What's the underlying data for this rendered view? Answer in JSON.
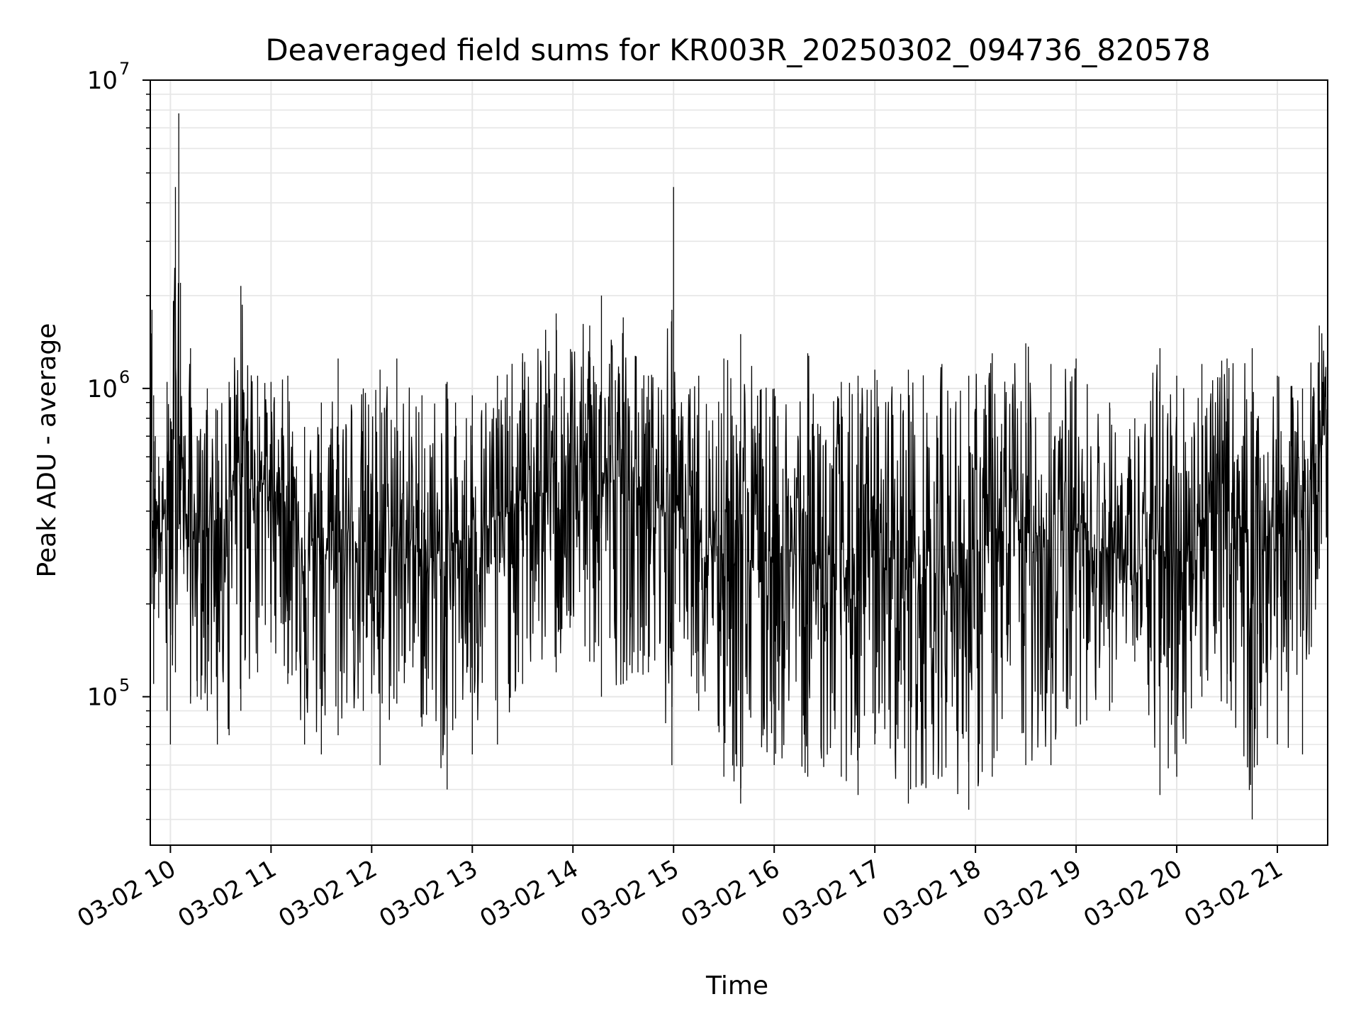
{
  "chart_data": {
    "type": "line",
    "title": "Deaveraged field sums for KR003R_20250302_094736_820578",
    "xlabel": "Time",
    "ylabel": "Peak ADU - average",
    "yscale": "log",
    "ylim": [
      33000,
      10000000
    ],
    "xlim": [
      "2025-03-02 09:48",
      "2025-03-02 21:30"
    ],
    "grid": true,
    "line_color": "#000000",
    "grid_color": "#e6e6e6",
    "x_ticks": [
      {
        "value": "2025-03-02 10:00",
        "label": "03-02 10"
      },
      {
        "value": "2025-03-02 11:00",
        "label": "03-02 11"
      },
      {
        "value": "2025-03-02 12:00",
        "label": "03-02 12"
      },
      {
        "value": "2025-03-02 13:00",
        "label": "03-02 13"
      },
      {
        "value": "2025-03-02 14:00",
        "label": "03-02 14"
      },
      {
        "value": "2025-03-02 15:00",
        "label": "03-02 15"
      },
      {
        "value": "2025-03-02 16:00",
        "label": "03-02 16"
      },
      {
        "value": "2025-03-02 17:00",
        "label": "03-02 17"
      },
      {
        "value": "2025-03-02 18:00",
        "label": "03-02 18"
      },
      {
        "value": "2025-03-02 19:00",
        "label": "03-02 19"
      },
      {
        "value": "2025-03-02 20:00",
        "label": "03-02 20"
      },
      {
        "value": "2025-03-02 21:00",
        "label": "03-02 21"
      }
    ],
    "y_ticks": [
      {
        "value": 100000,
        "base": "10",
        "exp": "5"
      },
      {
        "value": 1000000,
        "base": "10",
        "exp": "6"
      },
      {
        "value": 10000000,
        "base": "10",
        "exp": "7"
      }
    ],
    "series": [
      {
        "x": [
          "2025-03-02 09:48",
          "2025-03-02 09:49",
          "2025-03-02 09:50",
          "2025-03-02 09:51",
          "2025-03-02 09:53",
          "2025-03-02 09:55",
          "2025-03-02 09:58",
          "2025-03-02 10:00",
          "2025-03-02 10:03",
          "2025-03-02 10:05",
          "2025-03-02 10:06",
          "2025-03-02 10:08",
          "2025-03-02 10:12",
          "2025-03-02 10:16",
          "2025-03-02 10:22",
          "2025-03-02 10:28",
          "2025-03-02 10:35",
          "2025-03-02 10:42",
          "2025-03-02 10:52",
          "2025-03-02 11:00",
          "2025-03-02 11:10",
          "2025-03-02 11:20",
          "2025-03-02 11:30",
          "2025-03-02 11:40",
          "2025-03-02 11:55",
          "2025-03-02 12:05",
          "2025-03-02 12:15",
          "2025-03-02 12:30",
          "2025-03-02 12:45",
          "2025-03-02 12:50",
          "2025-03-02 13:00",
          "2025-03-02 13:15",
          "2025-03-02 13:30",
          "2025-03-02 13:50",
          "2025-03-02 14:10",
          "2025-03-02 14:17",
          "2025-03-02 14:30",
          "2025-03-02 14:45",
          "2025-03-02 14:59",
          "2025-03-02 15:00",
          "2025-03-02 15:01",
          "2025-03-02 15:15",
          "2025-03-02 15:30",
          "2025-03-02 15:40",
          "2025-03-02 16:00",
          "2025-03-02 16:20",
          "2025-03-02 16:40",
          "2025-03-02 16:50",
          "2025-03-02 17:00",
          "2025-03-02 17:20",
          "2025-03-02 17:40",
          "2025-03-02 17:56",
          "2025-03-02 18:10",
          "2025-03-02 18:30",
          "2025-03-02 18:45",
          "2025-03-02 19:00",
          "2025-03-02 19:20",
          "2025-03-02 19:35",
          "2025-03-02 19:50",
          "2025-03-02 20:00",
          "2025-03-02 20:15",
          "2025-03-02 20:30",
          "2025-03-02 20:45",
          "2025-03-02 20:48",
          "2025-03-02 21:00",
          "2025-03-02 21:15",
          "2025-03-02 21:25",
          "2025-03-02 21:30"
        ],
        "upper": [
          2100000,
          1800000,
          950000,
          700000,
          600000,
          500000,
          1050000,
          800000,
          4500000,
          7800000,
          2200000,
          700000,
          1350000,
          700000,
          1000000,
          850000,
          1050000,
          2150000,
          1100000,
          1050000,
          1100000,
          750000,
          900000,
          1250000,
          1000000,
          1150000,
          1250000,
          950000,
          1050000,
          900000,
          950000,
          1100000,
          1300000,
          1750000,
          1600000,
          2000000,
          1700000,
          1100000,
          1800000,
          4500000,
          900000,
          1100000,
          1250000,
          1500000,
          1000000,
          1300000,
          1050000,
          1100000,
          1150000,
          1150000,
          1200000,
          1100000,
          1300000,
          1400000,
          1200000,
          1250000,
          900000,
          800000,
          1350000,
          1100000,
          1200000,
          1250000,
          1350000,
          800000,
          1100000,
          1000000,
          1600000,
          1700000
        ],
        "lower": [
          900000,
          200000,
          110000,
          250000,
          180000,
          250000,
          90000,
          70000,
          120000,
          350000,
          300000,
          250000,
          95000,
          100000,
          90000,
          70000,
          75000,
          90000,
          120000,
          150000,
          110000,
          70000,
          65000,
          75000,
          90000,
          60000,
          95000,
          80000,
          50000,
          85000,
          65000,
          70000,
          110000,
          120000,
          130000,
          100000,
          110000,
          120000,
          60000,
          140000,
          200000,
          90000,
          55000,
          45000,
          60000,
          55000,
          55000,
          48000,
          70000,
          45000,
          55000,
          43000,
          55000,
          60000,
          60000,
          80000,
          90000,
          130000,
          48000,
          55000,
          100000,
          95000,
          40000,
          60000,
          70000,
          65000,
          260000,
          300000
        ],
        "mid": [
          1200000,
          500000,
          350000,
          400000,
          330000,
          350000,
          450000,
          400000,
          700000,
          1200000,
          600000,
          400000,
          350000,
          300000,
          400000,
          350000,
          450000,
          500000,
          500000,
          480000,
          420000,
          300000,
          280000,
          330000,
          320000,
          280000,
          330000,
          300000,
          250000,
          320000,
          330000,
          380000,
          420000,
          480000,
          520000,
          520000,
          500000,
          450000,
          400000,
          900000,
          420000,
          380000,
          300000,
          280000,
          300000,
          280000,
          250000,
          220000,
          300000,
          260000,
          250000,
          250000,
          320000,
          340000,
          330000,
          350000,
          300000,
          250000,
          300000,
          280000,
          380000,
          400000,
          350000,
          280000,
          380000,
          400000,
          600000,
          800000
        ]
      }
    ]
  }
}
